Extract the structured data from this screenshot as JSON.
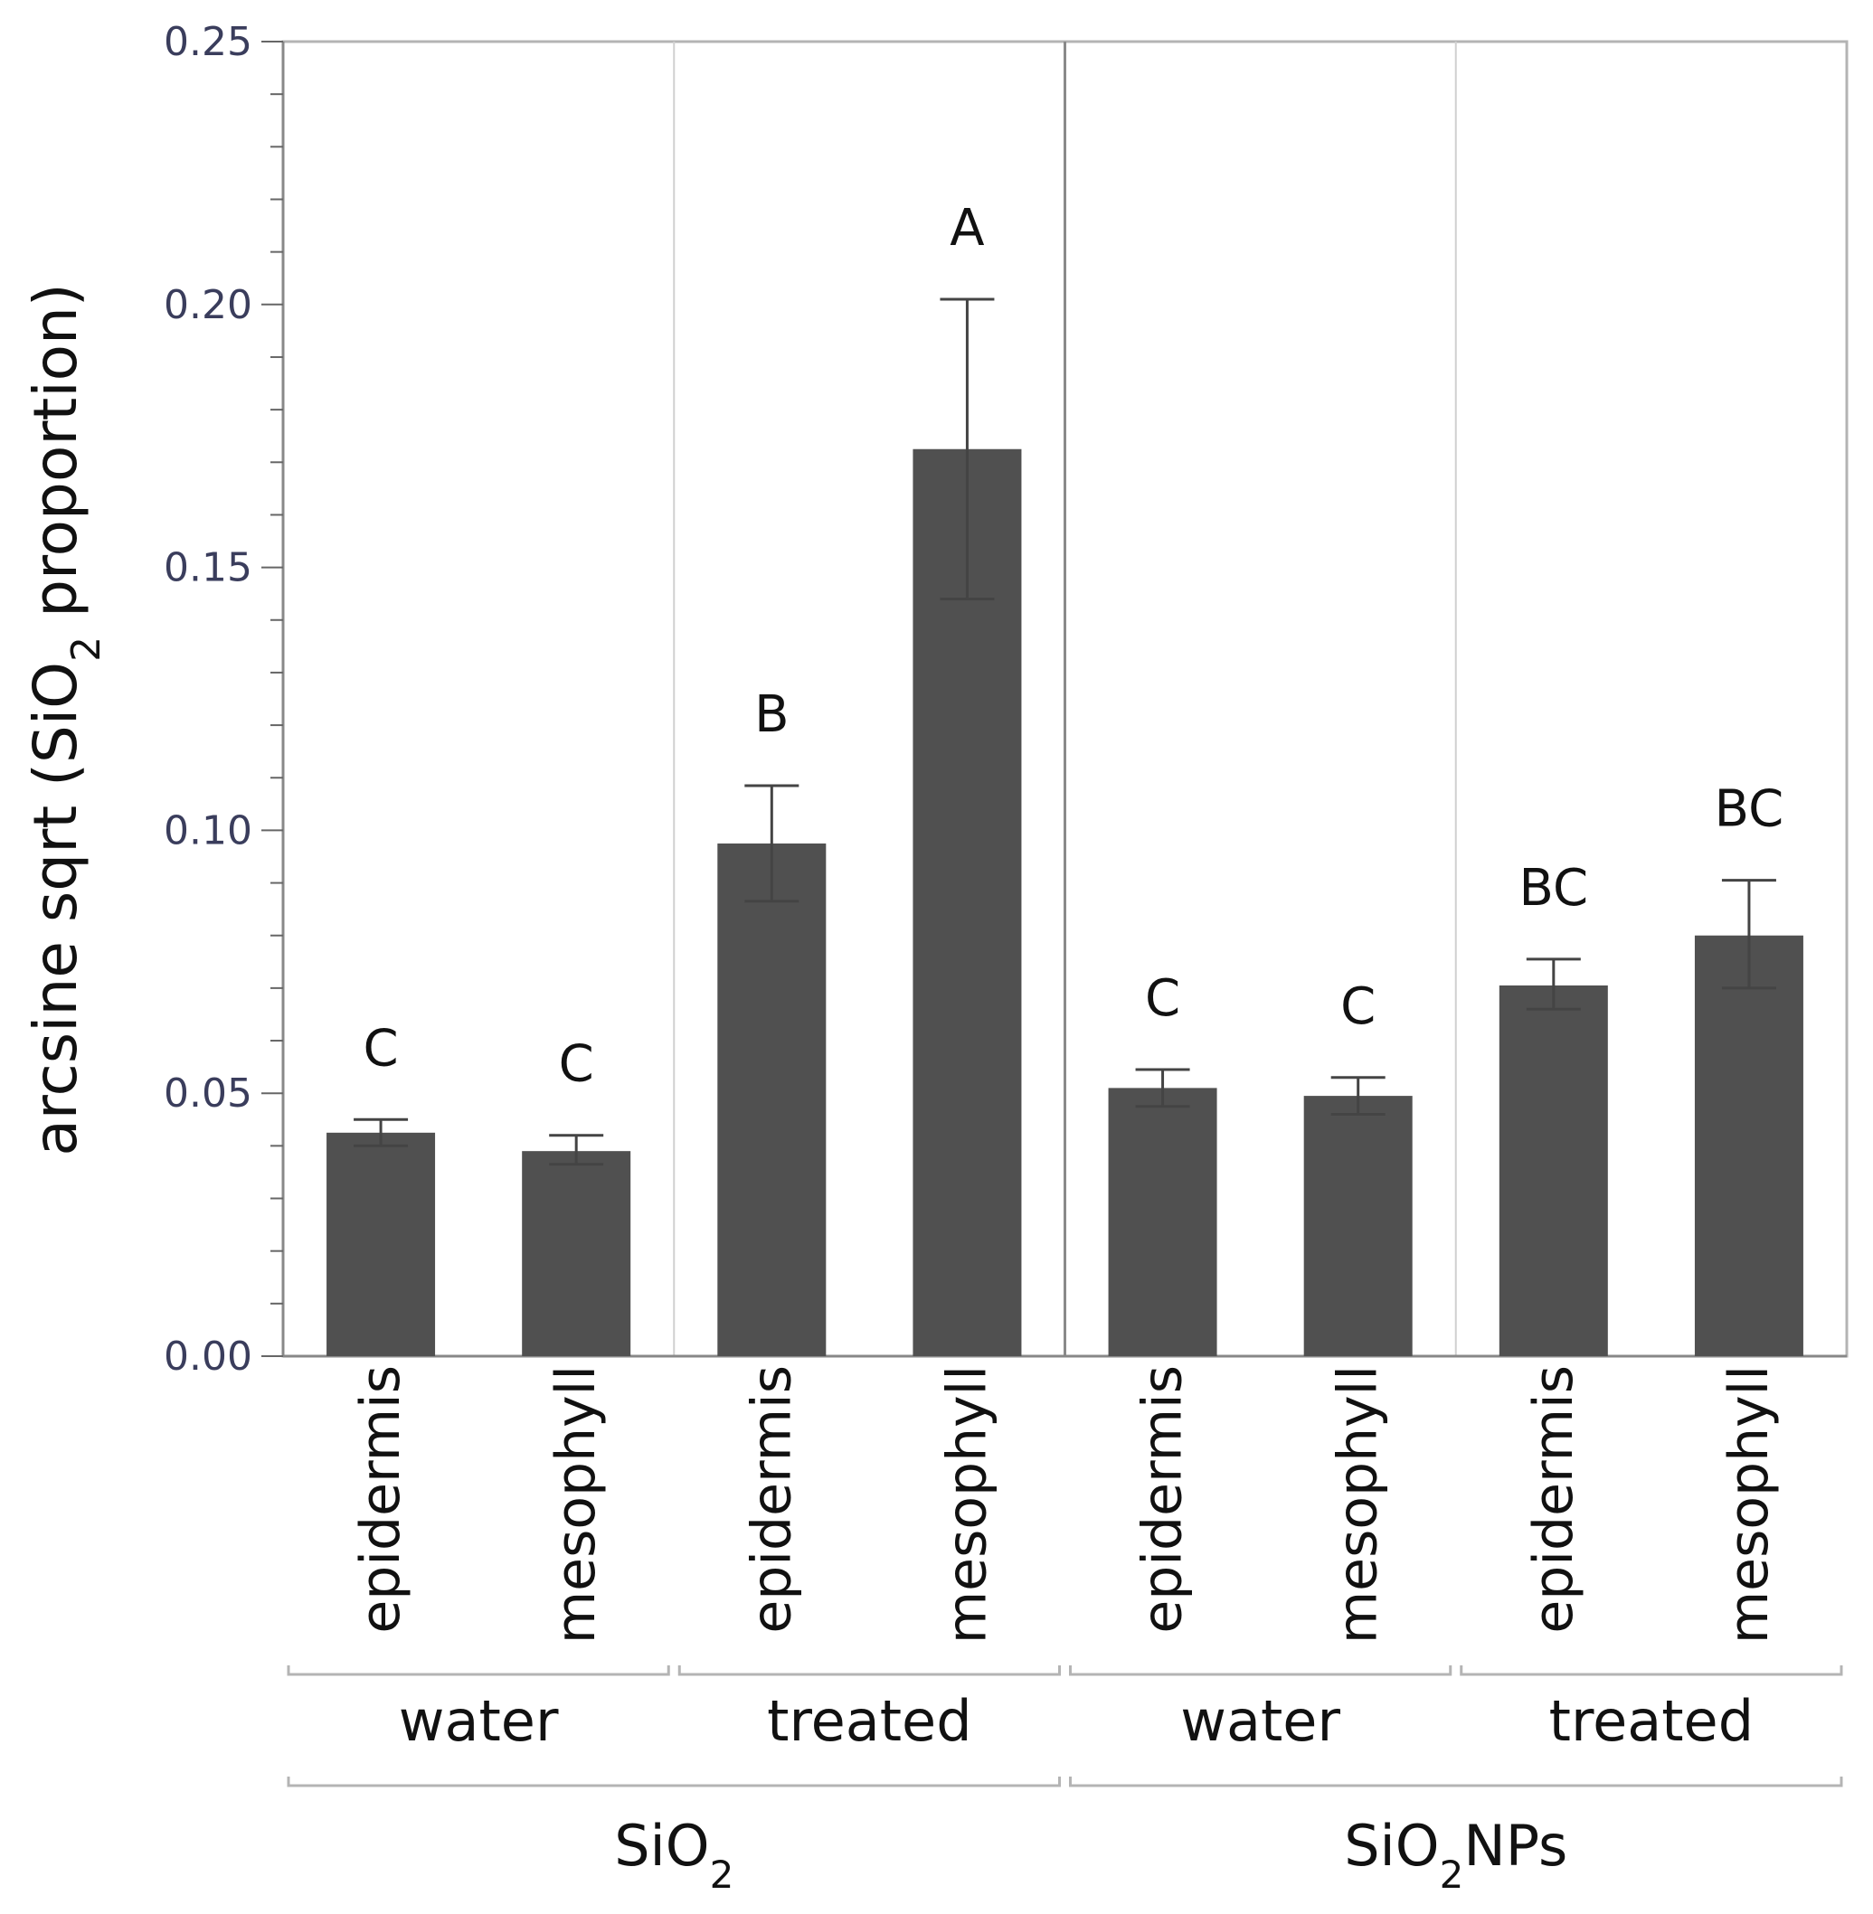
{
  "chart_data": {
    "type": "bar",
    "title": "",
    "ylabel": "arcsine sqrt (SiO",
    "ylabel_sub": "2",
    "ylabel_tail": " proportion)",
    "ylim": [
      0,
      0.25
    ],
    "yticks": [
      "0.00",
      "0.05",
      "0.10",
      "0.15",
      "0.20",
      "0.25"
    ],
    "grid": false,
    "categories": [
      "epidermis",
      "mesophyll",
      "epidermis",
      "mesophyll",
      "epidermis",
      "mesophyll",
      "epidermis",
      "mesophyll"
    ],
    "values": [
      0.0425,
      0.039,
      0.0975,
      0.1725,
      0.051,
      0.0495,
      0.0705,
      0.08
    ],
    "error_low": [
      0.04,
      0.0365,
      0.0865,
      0.144,
      0.0475,
      0.046,
      0.066,
      0.07
    ],
    "error_high": [
      0.045,
      0.042,
      0.1085,
      0.201,
      0.0545,
      0.053,
      0.0755,
      0.0905
    ],
    "letters": [
      "C",
      "C",
      "B",
      "A",
      "C",
      "C",
      "BC",
      "BC"
    ],
    "subgroups": [
      {
        "label": "water",
        "span": [
          0,
          1
        ]
      },
      {
        "label": "treated",
        "span": [
          2,
          3
        ]
      },
      {
        "label": "water",
        "span": [
          4,
          5
        ]
      },
      {
        "label": "treated",
        "span": [
          6,
          7
        ]
      }
    ],
    "groups": [
      {
        "label": "SiO",
        "sub": "2",
        "tail": "",
        "span": [
          0,
          3
        ]
      },
      {
        "label": "SiO",
        "sub": "2",
        "tail": "NPs",
        "span": [
          4,
          7
        ]
      }
    ],
    "colors": {
      "bar": "#505050",
      "frame": "#b4b4b4",
      "divider_major": "#8a8a8a",
      "divider_minor": "#d0d0d0",
      "bracket": "#b4b4b4",
      "error": "#444444"
    }
  }
}
